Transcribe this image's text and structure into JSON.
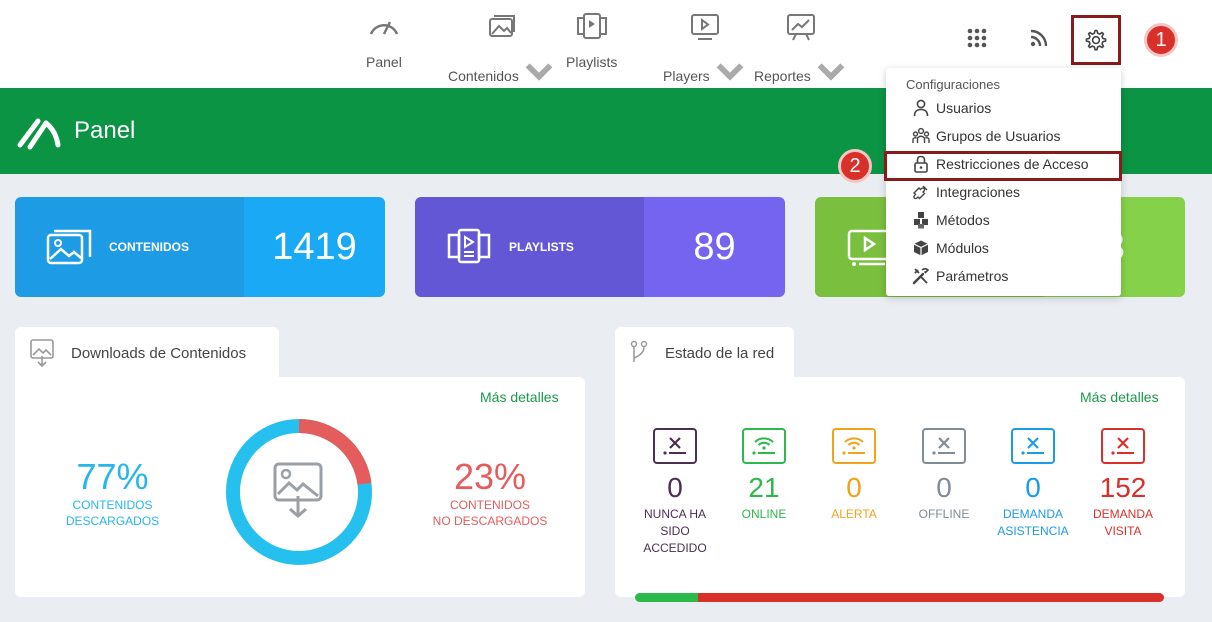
{
  "nav": {
    "items": [
      {
        "label": "Panel",
        "icon": "gauge-icon",
        "dropdown": false
      },
      {
        "label": "Contenidos",
        "icon": "images-icon",
        "dropdown": true
      },
      {
        "label": "Playlists",
        "icon": "playlist-icon",
        "dropdown": false
      },
      {
        "label": "Players",
        "icon": "player-icon",
        "dropdown": true
      },
      {
        "label": "Reportes",
        "icon": "chart-board-icon",
        "dropdown": true
      }
    ],
    "right_icons": [
      "apps-grid-icon",
      "rss-icon",
      "gear-icon"
    ]
  },
  "steps": {
    "one": "1",
    "two": "2"
  },
  "header": {
    "title": "Panel"
  },
  "stats": [
    {
      "label": "CONTENIDOS",
      "value": "1419",
      "color_left": "#1e9be5",
      "color_right": "#1aa9f5"
    },
    {
      "label": "PLAYLISTS",
      "value": "89",
      "color_left": "#6357d6",
      "color_right": "#7464f0"
    },
    {
      "label": "",
      "value": "3",
      "color_left": "#7abf3e",
      "color_right": "#86d14a"
    }
  ],
  "downloads": {
    "title": "Downloads de Contenidos",
    "more": "Más detalles",
    "downloaded_pct": "77%",
    "downloaded_label_1": "CONTENIDOS",
    "downloaded_label_2": "DESCARGADOS",
    "not_downloaded_pct": "23%",
    "not_downloaded_label_1": "CONTENIDOS",
    "not_downloaded_label_2": "NO DESCARGADOS",
    "downloaded_fraction": 0.77,
    "colors": {
      "downloaded": "#26c0ef",
      "not_downloaded": "#e45c5c"
    }
  },
  "network": {
    "title": "Estado de la red",
    "more": "Más detalles",
    "items": [
      {
        "count": "0",
        "label": "NUNCA HA SIDO ACCEDIDO",
        "color": "#4a2f4e",
        "icon": "x-screen-icon"
      },
      {
        "count": "21",
        "label": "ONLINE",
        "color": "#2cb84a",
        "icon": "wifi-screen-icon"
      },
      {
        "count": "0",
        "label": "ALERTA",
        "color": "#f2a21b",
        "icon": "wifi-screen-icon"
      },
      {
        "count": "0",
        "label": "OFFLINE",
        "color": "#7e8c96",
        "icon": "x-screen-icon"
      },
      {
        "count": "0",
        "label": "DEMANDA ASISTENCIA",
        "color": "#1e9be5",
        "icon": "x-screen-icon"
      },
      {
        "count": "152",
        "label": "DEMANDA VISITA",
        "color": "#d9302a",
        "icon": "x-screen-icon"
      }
    ],
    "bar_online_fraction": 0.12
  },
  "settings_menu": {
    "title": "Configuraciones",
    "items": [
      {
        "label": "Usuarios",
        "icon": "user-icon"
      },
      {
        "label": "Grupos de Usuarios",
        "icon": "users-group-icon"
      },
      {
        "label": "Restricciones de Acceso",
        "icon": "lock-icon"
      },
      {
        "label": "Integraciones",
        "icon": "puzzle-icon"
      },
      {
        "label": "Métodos",
        "icon": "cubes-icon"
      },
      {
        "label": "Módulos",
        "icon": "cube-icon"
      },
      {
        "label": "Parámetros",
        "icon": "tools-icon"
      }
    ]
  }
}
